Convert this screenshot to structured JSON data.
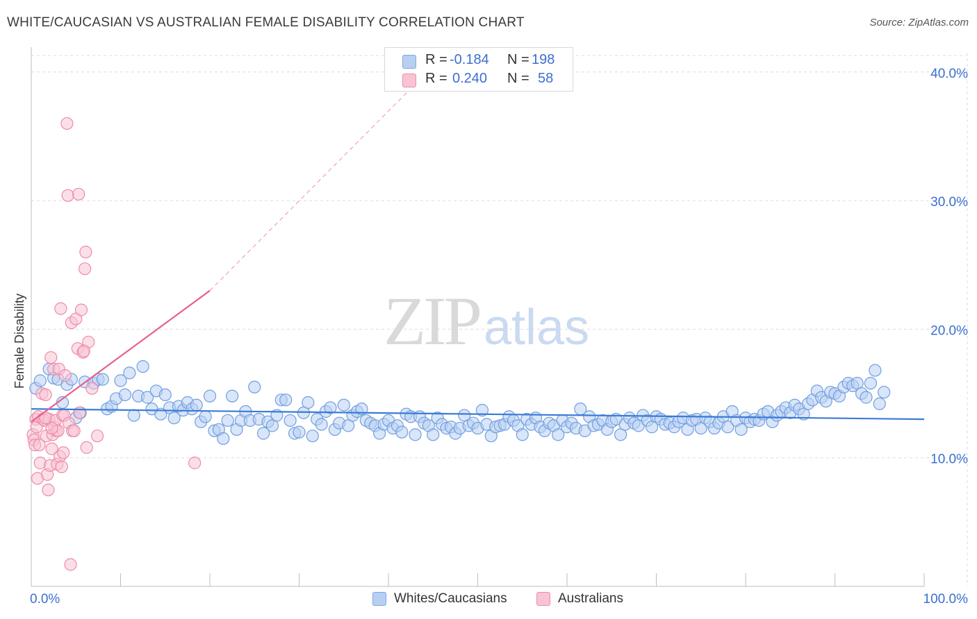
{
  "title": "WHITE/CAUCASIAN VS AUSTRALIAN FEMALE DISABILITY CORRELATION CHART",
  "source": "Source: ZipAtlas.com",
  "watermark": {
    "zip": "ZIP",
    "atlas": "atlas"
  },
  "legend": {
    "rows": [
      {
        "r_label": "R =",
        "r_value": "-0.184",
        "n_label": "N =",
        "n_value": "198",
        "color": "#7aa6e6",
        "fill": "#b9cff2"
      },
      {
        "r_label": "R =",
        "r_value": "0.240",
        "n_label": "N =",
        "n_value": "58",
        "color": "#ee8aaa",
        "fill": "#f8c4d4"
      }
    ]
  },
  "bottom_legend": [
    {
      "label": "Whites/Caucasians",
      "color": "#7aa6e6",
      "fill": "#b9cff2"
    },
    {
      "label": "Australians",
      "color": "#ee8aaa",
      "fill": "#f8c4d4"
    }
  ],
  "chart_data": {
    "type": "scatter",
    "xlabel": "",
    "ylabel": "Female Disability",
    "xlim": [
      0,
      100
    ],
    "ylim": [
      0,
      41.5
    ],
    "x_tick_labels": [
      "0.0%",
      "100.0%"
    ],
    "y_ticks": [
      10,
      20,
      30,
      40
    ],
    "y_tick_labels": [
      "10.0%",
      "20.0%",
      "30.0%",
      "40.0%"
    ],
    "grid": true,
    "colors": {
      "blue": "#3a7bd5",
      "pink": "#e8608c",
      "blue_fill": "#b9cff2",
      "pink_fill": "#f8c4d4",
      "tick_text": "#3a6fd0"
    },
    "series": [
      {
        "name": "Whites/Caucasians",
        "trend": {
          "x": [
            0,
            100
          ],
          "y": [
            13.8,
            13.0
          ]
        },
        "points": [
          [
            0.5,
            15.4
          ],
          [
            1,
            16
          ],
          [
            2,
            16.9
          ],
          [
            2.5,
            16.2
          ],
          [
            3,
            16.1
          ],
          [
            3.5,
            14.3
          ],
          [
            4,
            15.7
          ],
          [
            4.5,
            16.1
          ],
          [
            5,
            13.1
          ],
          [
            5.5,
            13.5
          ],
          [
            6,
            15.9
          ],
          [
            7,
            15.8
          ],
          [
            7.5,
            16.1
          ],
          [
            8,
            16.1
          ],
          [
            8.5,
            13.8
          ],
          [
            9,
            14
          ],
          [
            9.5,
            14.6
          ],
          [
            10,
            16
          ],
          [
            10.5,
            14.9
          ],
          [
            11,
            16.6
          ],
          [
            11.5,
            13.3
          ],
          [
            12,
            14.8
          ],
          [
            12.5,
            17.1
          ],
          [
            13,
            14.7
          ],
          [
            13.5,
            13.8
          ],
          [
            14,
            15.2
          ],
          [
            14.5,
            13.4
          ],
          [
            15,
            14.9
          ],
          [
            15.5,
            13.9
          ],
          [
            16,
            13.1
          ],
          [
            16.5,
            14
          ],
          [
            17,
            13.7
          ],
          [
            17.5,
            14.3
          ],
          [
            18,
            13.8
          ],
          [
            18.5,
            14.1
          ],
          [
            19,
            12.8
          ],
          [
            19.5,
            13.2
          ],
          [
            20,
            14.8
          ],
          [
            20.5,
            12.1
          ],
          [
            21,
            12.2
          ],
          [
            21.5,
            11.5
          ],
          [
            22,
            12.9
          ],
          [
            22.5,
            14.8
          ],
          [
            23,
            12.2
          ],
          [
            23.5,
            12.9
          ],
          [
            24,
            13.6
          ],
          [
            24.5,
            12.9
          ],
          [
            25,
            15.5
          ],
          [
            25.5,
            13
          ],
          [
            26,
            11.9
          ],
          [
            26.5,
            12.8
          ],
          [
            27,
            12.5
          ],
          [
            27.5,
            13.3
          ],
          [
            28,
            14.5
          ],
          [
            28.5,
            14.5
          ],
          [
            29,
            12.9
          ],
          [
            29.5,
            11.9
          ],
          [
            30,
            12
          ],
          [
            30.5,
            13.5
          ],
          [
            31,
            14.3
          ],
          [
            31.5,
            11.7
          ],
          [
            32,
            13
          ],
          [
            32.5,
            12.6
          ],
          [
            33,
            13.6
          ],
          [
            33.5,
            13.9
          ],
          [
            34,
            12.2
          ],
          [
            34.5,
            12.7
          ],
          [
            35,
            14.1
          ],
          [
            35.5,
            12.5
          ],
          [
            36,
            13.3
          ],
          [
            36.5,
            13.6
          ],
          [
            37,
            13.8
          ],
          [
            37.5,
            12.9
          ],
          [
            38,
            12.7
          ],
          [
            38.5,
            12.5
          ],
          [
            39,
            11.9
          ],
          [
            39.5,
            12.6
          ],
          [
            40,
            12.9
          ],
          [
            40.5,
            12.3
          ],
          [
            41,
            12.5
          ],
          [
            41.5,
            12
          ],
          [
            42,
            13.4
          ],
          [
            42.5,
            13.2
          ],
          [
            43,
            11.8
          ],
          [
            43.5,
            13.2
          ],
          [
            44,
            12.7
          ],
          [
            44.5,
            12.5
          ],
          [
            45,
            11.8
          ],
          [
            45.5,
            13.1
          ],
          [
            46,
            12.6
          ],
          [
            46.5,
            12.3
          ],
          [
            47,
            12.4
          ],
          [
            47.5,
            11.9
          ],
          [
            48,
            12.3
          ],
          [
            48.5,
            13.3
          ],
          [
            49,
            12.5
          ],
          [
            49.5,
            12.7
          ],
          [
            50,
            12.3
          ],
          [
            50.5,
            13.7
          ],
          [
            51,
            12.6
          ],
          [
            51.5,
            11.7
          ],
          [
            52,
            12.4
          ],
          [
            52.5,
            12.5
          ],
          [
            53,
            12.6
          ],
          [
            53.5,
            13.2
          ],
          [
            54,
            12.9
          ],
          [
            54.5,
            12.5
          ],
          [
            55,
            11.8
          ],
          [
            55.5,
            13
          ],
          [
            56,
            12.6
          ],
          [
            56.5,
            13.1
          ],
          [
            57,
            12.4
          ],
          [
            57.5,
            12.1
          ],
          [
            58,
            12.7
          ],
          [
            58.5,
            12.5
          ],
          [
            59,
            11.8
          ],
          [
            59.5,
            12.9
          ],
          [
            60,
            12.4
          ],
          [
            60.5,
            12.7
          ],
          [
            61,
            12.3
          ],
          [
            61.5,
            13.8
          ],
          [
            62,
            12.1
          ],
          [
            62.5,
            13.2
          ],
          [
            63,
            12.5
          ],
          [
            63.5,
            12.6
          ],
          [
            64,
            12.9
          ],
          [
            64.5,
            12.2
          ],
          [
            65,
            12.8
          ],
          [
            65.5,
            13
          ],
          [
            66,
            11.8
          ],
          [
            66.5,
            12.6
          ],
          [
            67,
            13.1
          ],
          [
            67.5,
            12.7
          ],
          [
            68,
            12.5
          ],
          [
            68.5,
            13.3
          ],
          [
            69,
            12.9
          ],
          [
            69.5,
            12.4
          ],
          [
            70,
            13.2
          ],
          [
            70.5,
            13
          ],
          [
            71,
            12.6
          ],
          [
            71.5,
            12.7
          ],
          [
            72,
            12.4
          ],
          [
            72.5,
            12.8
          ],
          [
            73,
            13.1
          ],
          [
            73.5,
            12.2
          ],
          [
            74,
            12.9
          ],
          [
            74.5,
            13
          ],
          [
            75,
            12.3
          ],
          [
            75.5,
            13.1
          ],
          [
            76,
            12.8
          ],
          [
            76.5,
            12.3
          ],
          [
            77,
            12.7
          ],
          [
            77.5,
            13.2
          ],
          [
            78,
            12.4
          ],
          [
            78.5,
            13.6
          ],
          [
            79,
            12.9
          ],
          [
            79.5,
            12.2
          ],
          [
            80,
            13.1
          ],
          [
            80.5,
            12.8
          ],
          [
            81,
            13
          ],
          [
            81.5,
            12.9
          ],
          [
            82,
            13.4
          ],
          [
            82.5,
            13.6
          ],
          [
            83,
            12.8
          ],
          [
            83.5,
            13.3
          ],
          [
            84,
            13.6
          ],
          [
            84.5,
            13.9
          ],
          [
            85,
            13.5
          ],
          [
            85.5,
            14.1
          ],
          [
            86,
            13.8
          ],
          [
            86.5,
            13.4
          ],
          [
            87,
            14.2
          ],
          [
            87.5,
            14.5
          ],
          [
            88,
            15.2
          ],
          [
            88.5,
            14.7
          ],
          [
            89,
            14.4
          ],
          [
            89.5,
            15.1
          ],
          [
            90,
            15
          ],
          [
            90.5,
            14.8
          ],
          [
            91,
            15.5
          ],
          [
            91.5,
            15.8
          ],
          [
            92,
            15.6
          ],
          [
            92.5,
            15.8
          ],
          [
            93,
            15
          ],
          [
            93.5,
            14.7
          ],
          [
            94,
            15.8
          ],
          [
            94.5,
            16.8
          ],
          [
            95,
            14.2
          ],
          [
            95.5,
            15.1
          ]
        ]
      },
      {
        "name": "Australians",
        "trend": {
          "x": [
            0,
            20
          ],
          "y": [
            12.8,
            23.0
          ]
        },
        "trend_extension": {
          "x": [
            20,
            46.5
          ],
          "y": [
            23.0,
            41.5
          ]
        },
        "points": [
          [
            0.2,
            11.8
          ],
          [
            0.3,
            11.4
          ],
          [
            0.4,
            11
          ],
          [
            0.5,
            13
          ],
          [
            0.6,
            12.4
          ],
          [
            0.7,
            8.4
          ],
          [
            0.8,
            13.2
          ],
          [
            0.9,
            11
          ],
          [
            1,
            9.6
          ],
          [
            1.2,
            15
          ],
          [
            1.3,
            13
          ],
          [
            1.5,
            12.9
          ],
          [
            1.6,
            14.9
          ],
          [
            1.7,
            11.7
          ],
          [
            1.8,
            8.7
          ],
          [
            1.9,
            7.5
          ],
          [
            2,
            13
          ],
          [
            2.1,
            9.4
          ],
          [
            2.2,
            17.8
          ],
          [
            2.3,
            10.7
          ],
          [
            2.4,
            11.8
          ],
          [
            2.5,
            16.9
          ],
          [
            2.6,
            12.4
          ],
          [
            2.7,
            12.9
          ],
          [
            2.8,
            12.1
          ],
          [
            2.9,
            9.5
          ],
          [
            3,
            12.1
          ],
          [
            3.1,
            16.9
          ],
          [
            3.2,
            10.1
          ],
          [
            3.3,
            21.6
          ],
          [
            3.4,
            9.3
          ],
          [
            3.5,
            13.3
          ],
          [
            3.6,
            10.4
          ],
          [
            3.7,
            13.3
          ],
          [
            3.8,
            16.4
          ],
          [
            4,
            36
          ],
          [
            4.1,
            30.4
          ],
          [
            4.2,
            12.7
          ],
          [
            4.4,
            1.7
          ],
          [
            4.5,
            20.5
          ],
          [
            4.6,
            12.1
          ],
          [
            4.8,
            12.1
          ],
          [
            5,
            20.8
          ],
          [
            5.2,
            18.5
          ],
          [
            5.4,
            13.5
          ],
          [
            5.6,
            21.5
          ],
          [
            5.8,
            18.2
          ],
          [
            6,
            24.7
          ],
          [
            6.1,
            26
          ],
          [
            6.2,
            10.8
          ],
          [
            6.4,
            19
          ],
          [
            6.8,
            15.4
          ],
          [
            7.4,
            11.7
          ],
          [
            18.3,
            9.6
          ],
          [
            5.3,
            30.5
          ],
          [
            1.6,
            13.1
          ],
          [
            2.3,
            12.3
          ],
          [
            5.9,
            18.3
          ]
        ]
      }
    ]
  }
}
